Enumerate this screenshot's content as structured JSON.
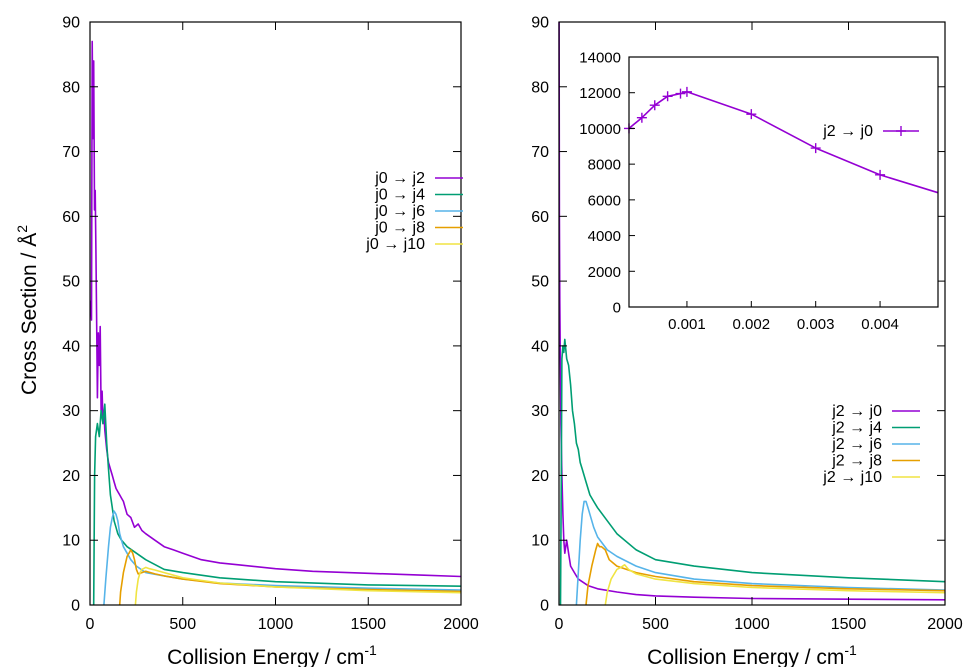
{
  "figure": {
    "ylabel": "Cross Section / Å",
    "ylabel_sup": "2",
    "xlabel": "Collision Energy / cm",
    "xlabel_sup": "-1"
  },
  "chart_data": [
    {
      "type": "line",
      "panel": "left",
      "xlabel": "Collision Energy / cm⁻¹",
      "ylabel": "Cross Section / Å²",
      "xlim": [
        0,
        2000
      ],
      "ylim": [
        0,
        90
      ],
      "xticks": [
        0,
        500,
        1000,
        1500,
        2000
      ],
      "yticks": [
        0,
        10,
        20,
        30,
        40,
        50,
        60,
        70,
        80,
        90
      ],
      "grid": false,
      "legend_position": "top-right",
      "series": [
        {
          "name": "j0 → j2",
          "color": "#9400d3",
          "x": [
            3,
            8,
            12,
            16,
            20,
            24,
            28,
            32,
            36,
            40,
            45,
            50,
            55,
            60,
            65,
            70,
            75,
            80,
            90,
            100,
            110,
            120,
            130,
            140,
            150,
            160,
            170,
            180,
            190,
            200,
            220,
            240,
            260,
            280,
            300,
            350,
            400,
            450,
            500,
            600,
            700,
            800,
            1000,
            1200,
            1500,
            1800,
            2000
          ],
          "y": [
            47,
            44,
            87,
            72,
            84,
            61,
            64,
            55,
            43,
            32,
            42,
            37,
            43,
            30,
            33,
            28,
            30,
            27,
            24,
            22,
            21,
            20,
            19,
            18,
            17.5,
            17,
            16.5,
            16,
            15,
            14,
            13.5,
            12,
            12.5,
            11.5,
            11,
            10,
            9,
            8.5,
            8,
            7,
            6.5,
            6.2,
            5.6,
            5.2,
            4.9,
            4.6,
            4.4
          ]
        },
        {
          "name": "j0 → j4",
          "color": "#009e73",
          "x": [
            20,
            25,
            30,
            40,
            50,
            60,
            70,
            80,
            90,
            100,
            110,
            120,
            130,
            140,
            150,
            170,
            200,
            250,
            300,
            400,
            500,
            700,
            1000,
            1500,
            2000
          ],
          "y": [
            0,
            20,
            26,
            28,
            26,
            30,
            28,
            31,
            25,
            21,
            17,
            15,
            13,
            12,
            11,
            10,
            9,
            8,
            7,
            5.5,
            5,
            4.2,
            3.6,
            3.1,
            2.9
          ]
        },
        {
          "name": "j0 → j6",
          "color": "#56b4e9",
          "x": [
            75,
            85,
            100,
            110,
            120,
            130,
            140,
            150,
            160,
            170,
            180,
            200,
            220,
            250,
            300,
            400,
            500,
            700,
            1000,
            1500,
            2000
          ],
          "y": [
            0,
            4,
            9,
            12,
            13.5,
            14.5,
            14,
            13,
            11,
            10,
            9,
            8,
            7,
            6,
            5,
            4.5,
            4,
            3.4,
            3,
            2.6,
            2.3
          ]
        },
        {
          "name": "j0 → j8",
          "color": "#e69f00",
          "x": [
            160,
            165,
            180,
            200,
            210,
            220,
            230,
            240,
            250,
            260,
            280,
            300,
            350,
            400,
            500,
            700,
            1000,
            1500,
            2000
          ],
          "y": [
            0,
            2,
            5,
            7.5,
            8,
            8.5,
            8,
            7,
            5.5,
            4.8,
            5,
            5.2,
            4.8,
            4.5,
            4,
            3.3,
            2.8,
            2.4,
            2.1
          ]
        },
        {
          "name": "j0 → j10",
          "color": "#f0e442",
          "x": [
            245,
            250,
            260,
            270,
            280,
            300,
            320,
            350,
            400,
            450,
            500,
            700,
            1000,
            1500,
            2000
          ],
          "y": [
            0,
            2,
            4,
            5,
            5.5,
            5.8,
            5.6,
            5.4,
            5,
            4.6,
            4.2,
            3.4,
            2.8,
            2.2,
            1.9
          ]
        }
      ]
    },
    {
      "type": "line",
      "panel": "right",
      "xlabel": "Collision Energy / cm⁻¹",
      "xlim": [
        0,
        2000
      ],
      "ylim": [
        0,
        90
      ],
      "xticks": [
        0,
        500,
        1000,
        1500,
        2000
      ],
      "yticks": [
        0,
        10,
        20,
        30,
        40,
        50,
        60,
        70,
        80,
        90
      ],
      "grid": false,
      "legend_position": "bottom-right",
      "series": [
        {
          "name": "j2 → j0",
          "color": "#9400d3",
          "x": [
            0.5,
            2,
            4,
            6,
            8,
            10,
            15,
            20,
            25,
            30,
            40,
            50,
            60,
            80,
            100,
            150,
            200,
            300,
            400,
            500,
            700,
            1000,
            1500,
            2000
          ],
          "y": [
            90,
            60,
            47,
            40,
            35,
            28,
            20,
            14,
            10,
            8,
            10,
            8,
            6,
            5,
            4,
            3,
            2.5,
            2,
            1.6,
            1.4,
            1.2,
            1.0,
            0.9,
            0.8
          ]
        },
        {
          "name": "j2 → j4",
          "color": "#009e73",
          "x": [
            8,
            12,
            15,
            20,
            25,
            30,
            40,
            50,
            60,
            70,
            80,
            90,
            100,
            110,
            120,
            140,
            160,
            180,
            200,
            250,
            300,
            400,
            500,
            700,
            1000,
            1500,
            2000
          ],
          "y": [
            0,
            20,
            38,
            40,
            39,
            41,
            38,
            37,
            34,
            30,
            28,
            25,
            24,
            22,
            21,
            19,
            17,
            16,
            15,
            13,
            11,
            8.5,
            7,
            6,
            5,
            4.2,
            3.6
          ]
        },
        {
          "name": "j2 → j6",
          "color": "#56b4e9",
          "x": [
            90,
            100,
            110,
            120,
            130,
            140,
            150,
            160,
            170,
            180,
            200,
            250,
            300,
            400,
            500,
            700,
            1000,
            1500,
            2000
          ],
          "y": [
            0,
            5,
            10,
            14,
            16,
            16,
            15,
            14,
            13,
            12,
            10.5,
            8.5,
            7.5,
            6,
            5,
            4,
            3.3,
            2.7,
            2.3
          ]
        },
        {
          "name": "j2 → j8",
          "color": "#e69f00",
          "x": [
            140,
            150,
            170,
            190,
            200,
            210,
            220,
            240,
            260,
            280,
            300,
            350,
            400,
            500,
            700,
            1000,
            1500,
            2000
          ],
          "y": [
            0,
            3,
            6,
            8.5,
            9.5,
            9,
            9,
            8.5,
            7,
            6.5,
            6,
            5.5,
            5,
            4.4,
            3.6,
            3,
            2.5,
            2.2
          ]
        },
        {
          "name": "j2 → j10",
          "color": "#f0e442",
          "x": [
            240,
            250,
            270,
            290,
            300,
            320,
            340,
            360,
            400,
            500,
            700,
            1000,
            1500,
            2000
          ],
          "y": [
            0,
            2,
            4,
            5,
            5.5,
            5.8,
            6.2,
            5.5,
            4.8,
            4,
            3.3,
            2.7,
            2.2,
            1.9
          ]
        }
      ]
    },
    {
      "type": "line",
      "panel": "inset",
      "xlim": [
        0.0001,
        0.0049
      ],
      "ylim": [
        0,
        14000
      ],
      "xticks": [
        0.001,
        0.002,
        0.003,
        0.004
      ],
      "xtick_labels": [
        "0.001",
        "0.002",
        "0.003",
        "0.004"
      ],
      "yticks": [
        0,
        2000,
        4000,
        6000,
        8000,
        10000,
        12000,
        14000
      ],
      "grid": false,
      "legend_position": "top-right",
      "series": [
        {
          "name": "j2 → j0",
          "color": "#9400d3",
          "markers": true,
          "x": [
            0.0001,
            0.0003,
            0.0005,
            0.0007,
            0.0009,
            0.001,
            0.002,
            0.003,
            0.004,
            0.0049
          ],
          "y": [
            10000,
            10600,
            11300,
            11800,
            11950,
            12050,
            10800,
            8900,
            7400,
            6400
          ],
          "marker_count": 9
        }
      ]
    }
  ]
}
